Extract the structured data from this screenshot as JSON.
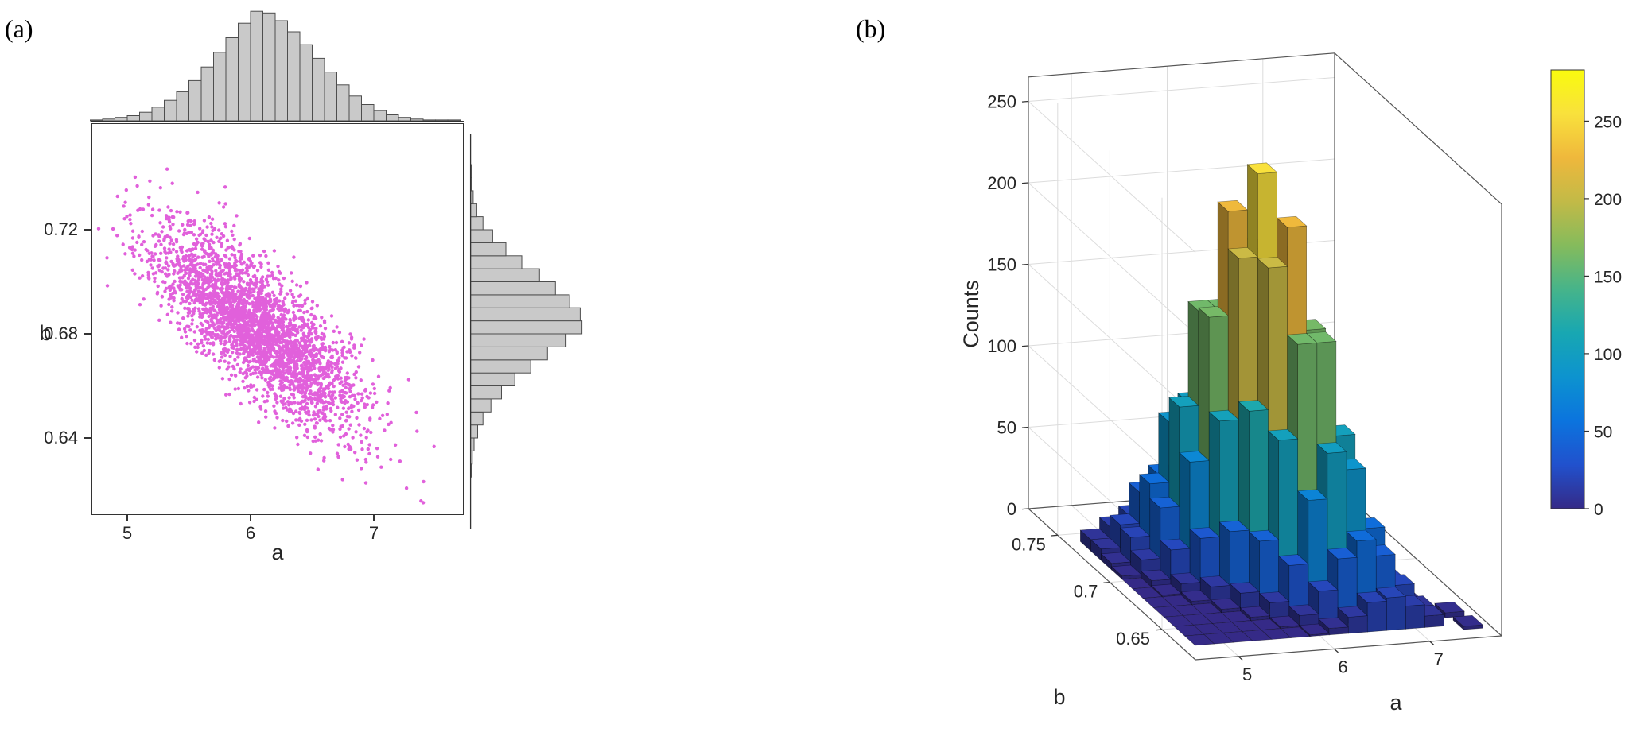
{
  "figure": {
    "panel_a_label": "(a)",
    "panel_b_label": "(b)",
    "background": "#ffffff"
  },
  "chart_data": [
    {
      "id": "joint_scatter",
      "type": "scatter",
      "xlabel": "a",
      "ylabel": "b",
      "xlim": [
        4.71,
        7.73
      ],
      "ylim": [
        0.61,
        0.761
      ],
      "xticks": [
        5,
        6,
        7
      ],
      "yticks": [
        0.64,
        0.68,
        0.72
      ],
      "marker_color": "#e160db",
      "n_points": 3000,
      "mean_a": 6.05,
      "mean_b": 0.682,
      "std_a": 0.42,
      "std_b": 0.019,
      "correlation": -0.78,
      "seed": 20
    },
    {
      "id": "marginal_hist_a",
      "type": "bar",
      "orientation": "vertical",
      "bar_color": "#c9c9c9",
      "edge_color": "#4d4d4d",
      "bin_start": 4.7,
      "bin_width": 0.1,
      "values": [
        1,
        2,
        4,
        6,
        10,
        16,
        24,
        34,
        47,
        63,
        80,
        97,
        114,
        128,
        126,
        117,
        104,
        89,
        73,
        57,
        42,
        29,
        19,
        12,
        7,
        4,
        2,
        1,
        1,
        1
      ]
    },
    {
      "id": "marginal_hist_b",
      "type": "bar",
      "orientation": "horizontal",
      "bar_color": "#c9c9c9",
      "edge_color": "#4d4d4d",
      "bin_start": 0.62,
      "bin_width": 0.005,
      "values": [
        0,
        1,
        2,
        4,
        8,
        14,
        23,
        35,
        50,
        68,
        87,
        108,
        126,
        124,
        112,
        96,
        78,
        58,
        40,
        25,
        14,
        7,
        3,
        1,
        1,
        0
      ]
    },
    {
      "id": "hist3d",
      "type": "3d-histogram",
      "xlabel": "a",
      "ylabel": "b",
      "zlabel": "Counts",
      "a_bin_centers": [
        4.8,
        5.0,
        5.2,
        5.4,
        5.6,
        5.8,
        6.0,
        6.2,
        6.4,
        6.6,
        6.8,
        7.0,
        7.2
      ],
      "b_bin_centers": [
        0.737,
        0.727,
        0.717,
        0.707,
        0.697,
        0.687,
        0.677,
        0.667,
        0.657,
        0.647,
        0.637
      ],
      "counts": [
        [
          7,
          14,
          20,
          18,
          10,
          4,
          1,
          0,
          0,
          0,
          0,
          0,
          0
        ],
        [
          7,
          21,
          40,
          50,
          40,
          21,
          7,
          1,
          0,
          0,
          0,
          0,
          0
        ],
        [
          4,
          19,
          51,
          88,
          99,
          71,
          32,
          10,
          2,
          0,
          0,
          0,
          0
        ],
        [
          2,
          11,
          42,
          103,
          161,
          161,
          103,
          42,
          11,
          2,
          0,
          0,
          0
        ],
        [
          0,
          4,
          22,
          75,
          163,
          227,
          203,
          116,
          43,
          10,
          2,
          0,
          0
        ],
        [
          0,
          1,
          7,
          34,
          105,
          204,
          255,
          204,
          105,
          34,
          7,
          1,
          0
        ],
        [
          0,
          0,
          2,
          10,
          43,
          116,
          203,
          227,
          163,
          75,
          22,
          4,
          0
        ],
        [
          0,
          0,
          0,
          2,
          11,
          42,
          103,
          161,
          161,
          103,
          42,
          11,
          2
        ],
        [
          0,
          0,
          0,
          0,
          2,
          10,
          32,
          71,
          99,
          88,
          51,
          19,
          4
        ],
        [
          0,
          0,
          0,
          0,
          0,
          1,
          7,
          21,
          40,
          50,
          40,
          21,
          7
        ],
        [
          0,
          0,
          0,
          0,
          0,
          0,
          1,
          4,
          10,
          18,
          20,
          14,
          7
        ]
      ],
      "outliers": [
        {
          "a": 7.5,
          "b": 0.645,
          "count": 3
        },
        {
          "a": 7.55,
          "b": 0.632,
          "count": 2
        }
      ],
      "a_ticks": [
        5,
        6,
        7
      ],
      "b_ticks": [
        0.65,
        0.7,
        0.75
      ],
      "z_ticks": [
        0,
        50,
        100,
        150,
        200,
        250
      ],
      "colorbar_ticks": [
        0,
        50,
        100,
        150,
        200,
        250
      ],
      "color_scale_max": 283,
      "colormap": "parula",
      "colormap_stops": [
        "#352A87",
        "#2151CD",
        "#0B74DE",
        "#0D93CF",
        "#18A7B2",
        "#46B48A",
        "#85BB5C",
        "#C2BA47",
        "#EFB83C",
        "#F9E13C",
        "#F9FB0E"
      ]
    }
  ]
}
